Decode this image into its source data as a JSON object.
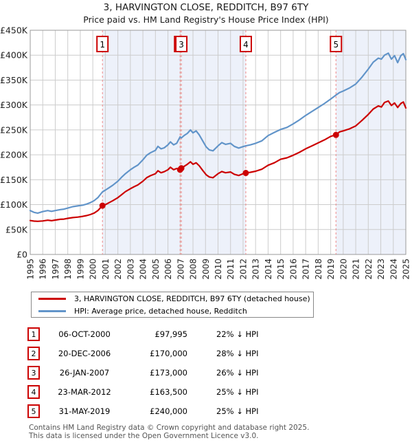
{
  "title": "3, HARVINGTON CLOSE, REDDITCH, B97 6TY",
  "subtitle": "Price paid vs. HM Land Registry's House Price Index (HPI)",
  "legend": {
    "series1": "3, HARVINGTON CLOSE, REDDITCH, B97 6TY (detached house)",
    "series2": "HPI: Average price, detached house, Redditch"
  },
  "sales": [
    {
      "num": "1",
      "date": "06-OCT-2000",
      "price": "£97,995",
      "hpi": "22% ↓ HPI"
    },
    {
      "num": "2",
      "date": "20-DEC-2006",
      "price": "£170,000",
      "hpi": "28% ↓ HPI"
    },
    {
      "num": "3",
      "date": "26-JAN-2007",
      "price": "£173,000",
      "hpi": "26% ↓ HPI"
    },
    {
      "num": "4",
      "date": "23-MAR-2012",
      "price": "£163,500",
      "hpi": "25% ↓ HPI"
    },
    {
      "num": "5",
      "date": "31-MAY-2019",
      "price": "£240,000",
      "hpi": "25% ↓ HPI"
    }
  ],
  "footer": {
    "line1": "Contains HM Land Registry data © Crown copyright and database right 2025.",
    "line2": "This data is licensed under the Open Government Licence v3.0."
  },
  "chart_data": {
    "type": "line",
    "title": "3, HARVINGTON CLOSE, REDDITCH, B97 6TY",
    "subtitle": "Price paid vs. HM Land Registry's House Price Index (HPI)",
    "xlabel": "",
    "ylabel": "",
    "xlim": [
      1995,
      2025
    ],
    "ylim": [
      0,
      450000
    ],
    "grid": true,
    "legend_position": "bottom",
    "y_ticks": [
      "£0",
      "£50K",
      "£100K",
      "£150K",
      "£200K",
      "£250K",
      "£300K",
      "£350K",
      "£400K",
      "£450K"
    ],
    "x_ticks": [
      "1995",
      "1996",
      "1997",
      "1998",
      "1999",
      "2000",
      "2001",
      "2002",
      "2003",
      "2004",
      "2005",
      "2006",
      "2007",
      "2008",
      "2009",
      "2010",
      "2011",
      "2012",
      "2013",
      "2014",
      "2015",
      "2016",
      "2017",
      "2018",
      "2019",
      "2020",
      "2021",
      "2022",
      "2023",
      "2024",
      "2025"
    ],
    "colors": {
      "series1": "#cc0000",
      "series2": "#6194c9",
      "band": "#edf1fa",
      "grid": "#cccccc",
      "border": "#999999",
      "event_line": "#ee8888",
      "tick_text": "#222222"
    },
    "ownership_bands": [
      [
        2000.77,
        2006.97
      ],
      [
        2007.07,
        2012.22
      ],
      [
        2019.42,
        2025
      ]
    ],
    "sale_markers": [
      {
        "num": "1",
        "year": 2000.77,
        "value": 97995
      },
      {
        "num": "2",
        "year": 2006.97,
        "value": 170000
      },
      {
        "num": "3",
        "year": 2007.07,
        "value": 173000
      },
      {
        "num": "4",
        "year": 2012.22,
        "value": 163500
      },
      {
        "num": "5",
        "year": 2019.42,
        "value": 240000
      }
    ],
    "series": [
      {
        "name": "3, HARVINGTON CLOSE, REDDITCH, B97 6TY (detached house)",
        "color": "#cc0000",
        "points": [
          [
            1995,
            68000
          ],
          [
            1995.3,
            67000
          ],
          [
            1995.6,
            66500
          ],
          [
            1996,
            67200
          ],
          [
            1996.4,
            68800
          ],
          [
            1996.7,
            67800
          ],
          [
            1997,
            69000
          ],
          [
            1997.4,
            70500
          ],
          [
            1997.7,
            71000
          ],
          [
            1998,
            72500
          ],
          [
            1998.4,
            74000
          ],
          [
            1998.8,
            75000
          ],
          [
            1999.2,
            76500
          ],
          [
            1999.5,
            78000
          ],
          [
            1999.8,
            80000
          ],
          [
            2000.1,
            83000
          ],
          [
            2000.4,
            88000
          ],
          [
            2000.77,
            97995
          ],
          [
            2001,
            100000
          ],
          [
            2001.3,
            104000
          ],
          [
            2001.6,
            108000
          ],
          [
            2002,
            114000
          ],
          [
            2002.3,
            120000
          ],
          [
            2002.6,
            126000
          ],
          [
            2003,
            132000
          ],
          [
            2003.3,
            136000
          ],
          [
            2003.6,
            139500
          ],
          [
            2004,
            147000
          ],
          [
            2004.3,
            154000
          ],
          [
            2004.6,
            158000
          ],
          [
            2005,
            162000
          ],
          [
            2005.2,
            168000
          ],
          [
            2005.45,
            164000
          ],
          [
            2005.7,
            166000
          ],
          [
            2006,
            170000
          ],
          [
            2006.2,
            175000
          ],
          [
            2006.45,
            170000
          ],
          [
            2006.7,
            172500
          ],
          [
            2006.97,
            170000
          ],
          [
            2007.07,
            173000
          ],
          [
            2007.3,
            177000
          ],
          [
            2007.55,
            181000
          ],
          [
            2007.8,
            186000
          ],
          [
            2008,
            181000
          ],
          [
            2008.25,
            184000
          ],
          [
            2008.5,
            178000
          ],
          [
            2008.8,
            168000
          ],
          [
            2009.05,
            160000
          ],
          [
            2009.3,
            155500
          ],
          [
            2009.6,
            154000
          ],
          [
            2010,
            162000
          ],
          [
            2010.3,
            166500
          ],
          [
            2010.6,
            164000
          ],
          [
            2011,
            165500
          ],
          [
            2011.3,
            161000
          ],
          [
            2011.65,
            158500
          ],
          [
            2012,
            162000
          ],
          [
            2012.22,
            163500
          ],
          [
            2012.6,
            165000
          ],
          [
            2013,
            167000
          ],
          [
            2013.5,
            171000
          ],
          [
            2014,
            179000
          ],
          [
            2014.5,
            184000
          ],
          [
            2015,
            191000
          ],
          [
            2015.5,
            194000
          ],
          [
            2016,
            199000
          ],
          [
            2016.5,
            205000
          ],
          [
            2017,
            212000
          ],
          [
            2017.5,
            218000
          ],
          [
            2018,
            224000
          ],
          [
            2018.5,
            230000
          ],
          [
            2019,
            237000
          ],
          [
            2019.42,
            240000
          ],
          [
            2019.7,
            246000
          ],
          [
            2020,
            248000
          ],
          [
            2020.5,
            252000
          ],
          [
            2021,
            258000
          ],
          [
            2021.5,
            269000
          ],
          [
            2022,
            281000
          ],
          [
            2022.4,
            292000
          ],
          [
            2022.8,
            298000
          ],
          [
            2023.05,
            296000
          ],
          [
            2023.3,
            305000
          ],
          [
            2023.6,
            308000
          ],
          [
            2023.85,
            299000
          ],
          [
            2024.1,
            304000
          ],
          [
            2024.35,
            295000
          ],
          [
            2024.6,
            303000
          ],
          [
            2024.8,
            306000
          ],
          [
            2025,
            294000
          ]
        ]
      },
      {
        "name": "HPI: Average price, detached house, Redditch",
        "color": "#6194c9",
        "points": [
          [
            1995,
            88000
          ],
          [
            1995.3,
            84500
          ],
          [
            1995.6,
            83000
          ],
          [
            1996,
            86000
          ],
          [
            1996.4,
            88000
          ],
          [
            1996.7,
            86500
          ],
          [
            1997,
            88000
          ],
          [
            1997.4,
            90000
          ],
          [
            1997.7,
            91000
          ],
          [
            1998,
            93000
          ],
          [
            1998.4,
            96000
          ],
          [
            1998.8,
            97500
          ],
          [
            1999.2,
            99000
          ],
          [
            1999.5,
            101000
          ],
          [
            1999.8,
            104000
          ],
          [
            2000.1,
            108000
          ],
          [
            2000.4,
            114000
          ],
          [
            2000.77,
            125600
          ],
          [
            2001,
            129000
          ],
          [
            2001.3,
            134000
          ],
          [
            2001.6,
            139000
          ],
          [
            2002,
            147000
          ],
          [
            2002.3,
            155000
          ],
          [
            2002.6,
            162000
          ],
          [
            2003,
            170000
          ],
          [
            2003.3,
            175000
          ],
          [
            2003.6,
            179500
          ],
          [
            2004,
            190000
          ],
          [
            2004.3,
            199000
          ],
          [
            2004.6,
            204000
          ],
          [
            2005,
            209000
          ],
          [
            2005.2,
            217000
          ],
          [
            2005.45,
            212000
          ],
          [
            2005.7,
            214000
          ],
          [
            2006,
            220000
          ],
          [
            2006.2,
            226000
          ],
          [
            2006.45,
            220000
          ],
          [
            2006.7,
            223000
          ],
          [
            2006.97,
            236000
          ],
          [
            2007.07,
            233800
          ],
          [
            2007.3,
            239000
          ],
          [
            2007.55,
            243000
          ],
          [
            2007.8,
            250000
          ],
          [
            2008,
            244000
          ],
          [
            2008.25,
            248000
          ],
          [
            2008.5,
            240000
          ],
          [
            2008.8,
            227000
          ],
          [
            2009.05,
            216000
          ],
          [
            2009.3,
            210000
          ],
          [
            2009.6,
            208000
          ],
          [
            2010,
            218000
          ],
          [
            2010.3,
            224500
          ],
          [
            2010.6,
            221000
          ],
          [
            2011,
            223000
          ],
          [
            2011.3,
            217000
          ],
          [
            2011.65,
            213500
          ],
          [
            2012,
            216500
          ],
          [
            2012.22,
            218000
          ],
          [
            2012.6,
            220000
          ],
          [
            2013,
            223000
          ],
          [
            2013.5,
            228000
          ],
          [
            2014,
            238500
          ],
          [
            2014.5,
            245000
          ],
          [
            2015,
            251000
          ],
          [
            2015.5,
            255000
          ],
          [
            2016,
            262000
          ],
          [
            2016.5,
            270000
          ],
          [
            2017,
            279000
          ],
          [
            2017.5,
            287000
          ],
          [
            2018,
            295000
          ],
          [
            2018.5,
            303000
          ],
          [
            2019,
            312000
          ],
          [
            2019.42,
            320000
          ],
          [
            2019.7,
            325000
          ],
          [
            2020,
            328000
          ],
          [
            2020.5,
            334000
          ],
          [
            2021,
            342000
          ],
          [
            2021.5,
            356000
          ],
          [
            2022,
            372000
          ],
          [
            2022.4,
            386000
          ],
          [
            2022.8,
            394000
          ],
          [
            2023.05,
            392000
          ],
          [
            2023.3,
            400000
          ],
          [
            2023.6,
            404000
          ],
          [
            2023.85,
            392000
          ],
          [
            2024.1,
            399000
          ],
          [
            2024.35,
            385000
          ],
          [
            2024.6,
            399000
          ],
          [
            2024.8,
            403000
          ],
          [
            2025,
            391000
          ]
        ]
      }
    ]
  }
}
